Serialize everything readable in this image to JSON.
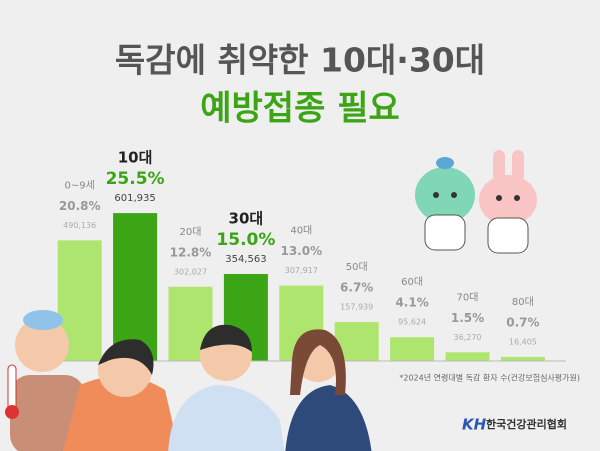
{
  "chart_data": {
    "type": "bar",
    "title": "독감에 취약한 10대·30대",
    "subtitle": "예방접종 필요",
    "categories": [
      "0~9세",
      "10대",
      "20대",
      "30대",
      "40대",
      "50대",
      "60대",
      "70대",
      "80대"
    ],
    "values": [
      20.8,
      25.5,
      12.8,
      15,
      13,
      6.7,
      4.1,
      1.5,
      0.7
    ],
    "value_labels": [
      "20.8%",
      "25.5%",
      "12.8%",
      "15.0%",
      "13.0%",
      "6.7%",
      "4.1%",
      "1.5%",
      "0.7%"
    ],
    "counts": [
      490136,
      601935,
      302027,
      354563,
      307917,
      157939,
      95624,
      36270,
      16405
    ],
    "count_labels": [
      "490,136",
      "601,935",
      "302,027",
      "354,563",
      "307,917",
      "157,939",
      "95,624",
      "36,270",
      "16,405"
    ],
    "color": "#aee56f",
    "highlight_color": "#3ba516",
    "colors": [
      "#aee56f",
      "#3ba516",
      "#aee56f",
      "#3ba516",
      "#aee56f",
      "#aee56f",
      "#aee56f",
      "#aee56f",
      "#aee56f"
    ],
    "source": "*2024년 연령대별 독감 환자 수(건강보험심사평가원)",
    "logo": "KH",
    "organization": "한국건강관리협회"
  }
}
